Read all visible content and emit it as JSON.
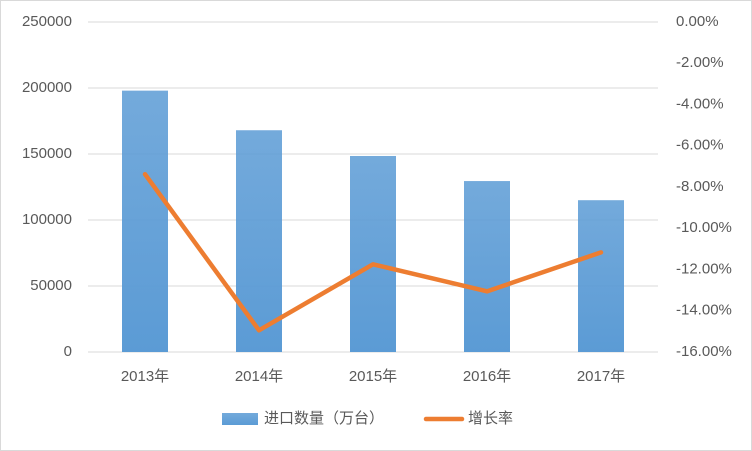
{
  "chart_data": {
    "type": "bar-line",
    "categories": [
      "2013年",
      "2014年",
      "2015年",
      "2016年",
      "2017年"
    ],
    "series": [
      {
        "name": "进口数量（万台）",
        "color": "#5b9bd5",
        "type": "bar",
        "values": [
          198000,
          168000,
          148500,
          129500,
          115000
        ]
      },
      {
        "name": "增长率",
        "color": "#ed7d31",
        "type": "line",
        "axis": "y2",
        "values": [
          -7.38,
          -14.95,
          -11.75,
          -13.06,
          -11.17
        ]
      }
    ],
    "ylim": [
      0,
      250000
    ],
    "yticks": [
      0,
      50000,
      100000,
      150000,
      200000,
      250000
    ],
    "y2lim": [
      -16,
      0
    ],
    "y2ticks": [
      {
        "value": 0,
        "label": "0.00%"
      },
      {
        "value": -2,
        "label": "-2.00%"
      },
      {
        "value": -4,
        "label": "-4.00%"
      },
      {
        "value": -6,
        "label": "-6.00%"
      },
      {
        "value": -8,
        "label": "-8.00%"
      },
      {
        "value": -10,
        "label": "-10.00%"
      },
      {
        "value": -12,
        "label": "-12.00%"
      },
      {
        "value": -14,
        "label": "-14.00%"
      },
      {
        "value": -16,
        "label": "-16.00%"
      }
    ],
    "grid": true,
    "legend": "bottom"
  }
}
